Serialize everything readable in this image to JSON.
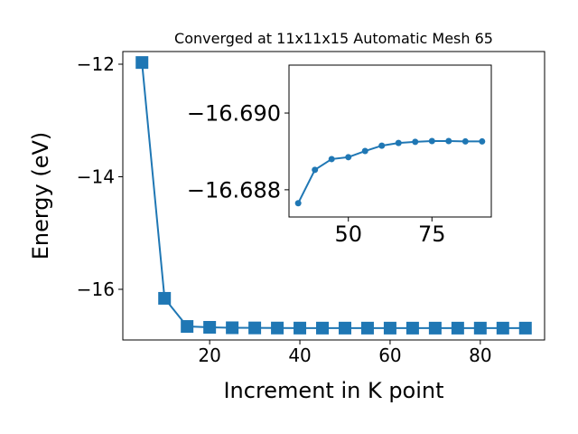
{
  "chart_data": [
    {
      "type": "line",
      "title": "Converged at 11x11x15 Automatic Mesh 65",
      "x_label": "Increment in K point",
      "y_label": "Energy (eV)",
      "x": [
        5,
        10,
        15,
        20,
        25,
        30,
        35,
        40,
        45,
        50,
        55,
        60,
        65,
        70,
        75,
        80,
        85,
        90
      ],
      "series": [
        {
          "color": "#1f77b4",
          "marker": "square",
          "values": [
            -11.97,
            -16.16,
            -16.66,
            -16.675,
            -16.683,
            -16.686,
            -16.68765,
            -16.68852,
            -16.6888,
            -16.68885,
            -16.68901,
            -16.68915,
            -16.68922,
            -16.68925,
            -16.68927,
            -16.68927,
            -16.68926,
            -16.68926
          ]
        }
      ],
      "xlim": [
        0.75,
        94.25
      ],
      "xticks": [
        20,
        40,
        60,
        80
      ],
      "ylim": [
        -16.9,
        -11.775
      ],
      "yticks": [
        {
          "value": -16,
          "label": "−16"
        },
        {
          "value": -14,
          "label": "−14"
        },
        {
          "value": -12,
          "label": "−12"
        }
      ]
    },
    {
      "type": "line",
      "x": [
        35,
        40,
        45,
        50,
        55,
        60,
        65,
        70,
        75,
        80,
        85,
        90
      ],
      "series": [
        {
          "color": "#1f77b4",
          "marker": "circle",
          "values": [
            -16.68765,
            -16.68852,
            -16.6888,
            -16.68885,
            -16.68901,
            -16.68915,
            -16.68922,
            -16.68925,
            -16.68927,
            -16.68927,
            -16.68926,
            -16.68926
          ]
        }
      ],
      "xlim": [
        32.25,
        92.75
      ],
      "xticks": [
        50,
        75
      ],
      "ylim": [
        -16.68729,
        -16.69125
      ],
      "yticks": [
        {
          "value": -16.688,
          "label": "−16.688"
        },
        {
          "value": -16.69,
          "label": "−16.690"
        }
      ]
    }
  ]
}
